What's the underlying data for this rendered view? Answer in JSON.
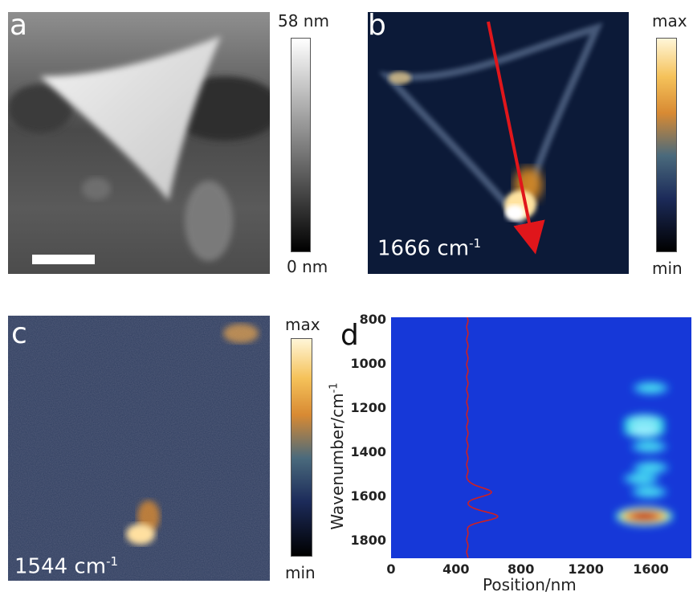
{
  "panels": {
    "a": {
      "letter": "a",
      "cbar_max": "58 nm",
      "cbar_min": "0 nm"
    },
    "b": {
      "letter": "b",
      "cbar_max": "max",
      "cbar_min": "min",
      "wavenumber": "1666 cm",
      "wavenumber_sup": "-1"
    },
    "c": {
      "letter": "c",
      "cbar_max": "max",
      "cbar_min": "min",
      "wavenumber": "1544 cm",
      "wavenumber_sup": "-1"
    },
    "d": {
      "letter": "d"
    }
  },
  "colors": {
    "map_background": "#0a1530",
    "afm_dark": "#2a2a2a",
    "afm_light": "#e8e8e8",
    "arrow": "#e0161b",
    "heatmap_low": "#1638d8",
    "heatmap_high": "#c00000",
    "trace": "#d02020"
  },
  "chart_data": {
    "type": "heatmap",
    "xlabel": "Position/nm",
    "ylabel": "Wavenumber/cm",
    "ylabel_sup": "-1",
    "x_ticks": [
      "0",
      "400",
      "800",
      "1200",
      "1600"
    ],
    "y_ticks": [
      "800",
      "1000",
      "1200",
      "1400",
      "1600",
      "1800"
    ],
    "xlim": [
      0,
      1850
    ],
    "ylim": [
      790,
      1880
    ],
    "y_inverted": true,
    "hotspots": [
      {
        "x": 1560,
        "y": 1690,
        "intensity": 1.0
      },
      {
        "x": 1560,
        "y": 1265,
        "intensity": 0.55
      },
      {
        "x": 1560,
        "y": 1300,
        "intensity": 0.55
      },
      {
        "x": 1540,
        "y": 1520,
        "intensity": 0.45
      },
      {
        "x": 1600,
        "y": 1470,
        "intensity": 0.3
      },
      {
        "x": 1590,
        "y": 1375,
        "intensity": 0.3
      },
      {
        "x": 1600,
        "y": 1110,
        "intensity": 0.25
      },
      {
        "x": 1590,
        "y": 1580,
        "intensity": 0.25
      }
    ],
    "spectrum_trace": {
      "baseline_x": 470,
      "peaks": [
        {
          "y": 1580,
          "x": 620
        },
        {
          "y": 1690,
          "x": 660
        }
      ]
    }
  }
}
